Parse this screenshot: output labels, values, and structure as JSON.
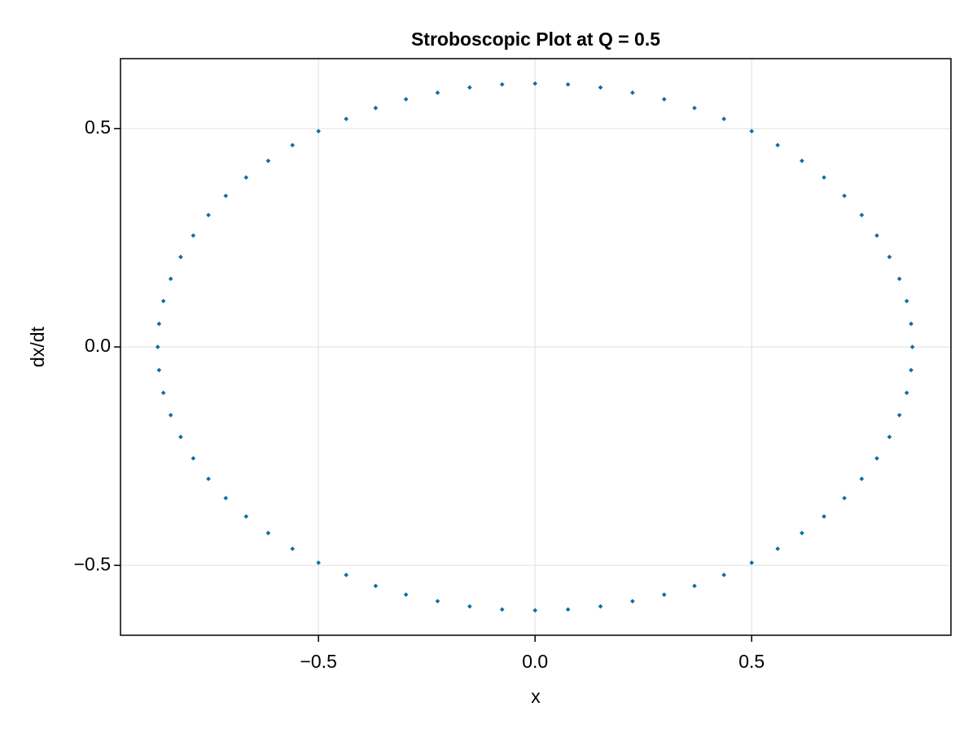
{
  "chart_data": {
    "type": "scatter",
    "title": "Stroboscopic Plot at Q = 0.5",
    "x_label": "x",
    "y_label": "dx/dt",
    "xlim": [
      -0.957,
      0.96
    ],
    "ylim": [
      -0.66,
      0.66
    ],
    "xticks": [
      {
        "value": -0.5,
        "label": "−0.5"
      },
      {
        "value": 0,
        "label": "0.0"
      },
      0.5
    ],
    "yticks": [
      {
        "value": -0.5,
        "label": "−0.5"
      },
      {
        "value": 0,
        "label": "0.0"
      },
      0.5
    ],
    "grid": true,
    "series": [
      {
        "color": "#0b6ea8",
        "x": [
          0.871,
          0.868,
          0.858,
          0.841,
          0.818,
          0.789,
          0.754,
          0.714,
          0.667,
          0.616,
          0.56,
          0.5,
          0.436,
          0.368,
          0.298,
          0.225,
          0.151,
          0.076,
          0,
          -0.076,
          -0.151,
          -0.225,
          -0.298,
          -0.368,
          -0.436,
          -0.5,
          -0.56,
          -0.616,
          -0.667,
          -0.714,
          -0.754,
          -0.789,
          -0.818,
          -0.841,
          -0.858,
          -0.868,
          -0.871,
          -0.868,
          -0.858,
          -0.841,
          -0.818,
          -0.789,
          -0.754,
          -0.714,
          -0.667,
          -0.616,
          -0.56,
          -0.5,
          -0.436,
          -0.368,
          -0.298,
          -0.225,
          -0.151,
          -0.076,
          0,
          0.076,
          0.151,
          0.225,
          0.298,
          0.368,
          0.436,
          0.5,
          0.56,
          0.616,
          0.667,
          0.714,
          0.754,
          0.789,
          0.818,
          0.841,
          0.858,
          0.868
        ],
        "values": [
          0,
          0.053,
          0.105,
          0.156,
          0.206,
          0.255,
          0.302,
          0.346,
          0.388,
          0.426,
          0.462,
          0.494,
          0.522,
          0.547,
          0.567,
          0.582,
          0.594,
          0.601,
          0.603,
          0.601,
          0.594,
          0.582,
          0.567,
          0.547,
          0.522,
          0.494,
          0.462,
          0.426,
          0.388,
          0.346,
          0.302,
          0.255,
          0.206,
          0.156,
          0.105,
          0.053,
          0,
          -0.053,
          -0.105,
          -0.156,
          -0.206,
          -0.255,
          -0.302,
          -0.346,
          -0.388,
          -0.426,
          -0.462,
          -0.494,
          -0.522,
          -0.547,
          -0.567,
          -0.582,
          -0.594,
          -0.601,
          -0.603,
          -0.601,
          -0.594,
          -0.582,
          -0.567,
          -0.547,
          -0.522,
          -0.494,
          -0.462,
          -0.426,
          -0.388,
          -0.346,
          -0.302,
          -0.255,
          -0.206,
          -0.156,
          -0.105,
          -0.053
        ]
      }
    ]
  }
}
